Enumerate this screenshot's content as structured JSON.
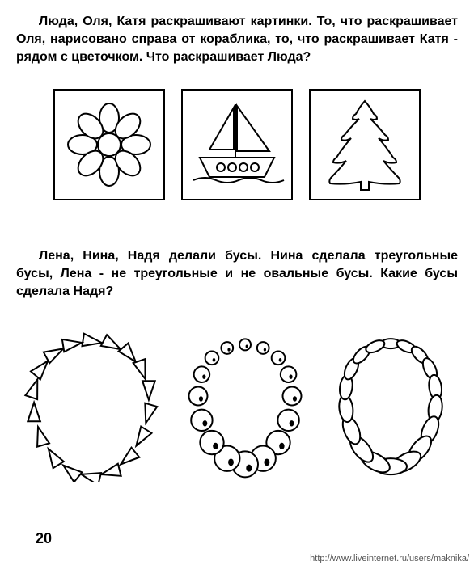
{
  "problem1": {
    "text": "Люда, Оля, Катя раскрашивают картинки. То, что раскрашивает Оля, нарисовано справа от кораблика, то, что раскрашивает Катя - рядом с цветочком. Что раскрашивает Люда?"
  },
  "problem2": {
    "text": "Лена, Нина, Надя делали бусы. Нина сделала треугольные бусы, Лена - не треугольные и не овальные бусы. Какие бусы сделала Надя?"
  },
  "pictures": {
    "box_border_color": "#000000",
    "items": [
      "flower",
      "ship",
      "tree"
    ]
  },
  "beads": {
    "items": [
      "triangle",
      "circle",
      "oval"
    ],
    "stroke": "#000000",
    "fill": "#ffffff"
  },
  "page_number": "20",
  "footer_url": "http://www.liveinternet.ru/users/maknika/"
}
